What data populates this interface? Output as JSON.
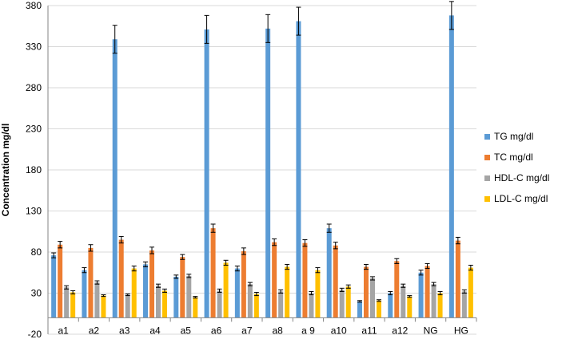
{
  "chart_data": {
    "type": "bar",
    "title": "",
    "xlabel": "",
    "ylabel": "Concentration mg/dl",
    "ylim": [
      -20,
      380
    ],
    "yticks": [
      -20,
      30,
      80,
      130,
      180,
      230,
      280,
      330,
      380
    ],
    "grid": "horizontal",
    "legend_position": "right",
    "categories": [
      "a1",
      "a2",
      "a3",
      "a4",
      "a5",
      "a6",
      "a7",
      "a8",
      "a 9",
      "a10",
      "a11",
      "a12",
      "NG",
      "HG"
    ],
    "series": [
      {
        "name": "TG mg/dl",
        "color": "#5B9BD5",
        "values": [
          76,
          58,
          339,
          65,
          50,
          351,
          60,
          352,
          361,
          109,
          20,
          30,
          55,
          368
        ],
        "errors": [
          3,
          3,
          17,
          3,
          2,
          17,
          3,
          17,
          17,
          5,
          1,
          2,
          3,
          17
        ]
      },
      {
        "name": "TC mg/dl",
        "color": "#ED7D31",
        "values": [
          89,
          85,
          95,
          82,
          74,
          109,
          81,
          92,
          91,
          88,
          62,
          69,
          63,
          94
        ],
        "errors": [
          4,
          4,
          4,
          4,
          3,
          5,
          4,
          4,
          4,
          4,
          3,
          3,
          3,
          4
        ]
      },
      {
        "name": "HDL-C mg/dl",
        "color": "#A5A5A5",
        "values": [
          37,
          43,
          28,
          39,
          51,
          33,
          41,
          32,
          30,
          34,
          48,
          39,
          41,
          32
        ],
        "errors": [
          2,
          2,
          1,
          2,
          2,
          2,
          2,
          2,
          2,
          2,
          2,
          2,
          2,
          2
        ]
      },
      {
        "name": "LDL-C mg/dl",
        "color": "#FFC000",
        "values": [
          31,
          27,
          60,
          33,
          25,
          67,
          29,
          62,
          58,
          38,
          21,
          26,
          30,
          61
        ],
        "errors": [
          2,
          1,
          3,
          2,
          1,
          3,
          2,
          3,
          3,
          2,
          1,
          1,
          2,
          3
        ]
      }
    ]
  }
}
